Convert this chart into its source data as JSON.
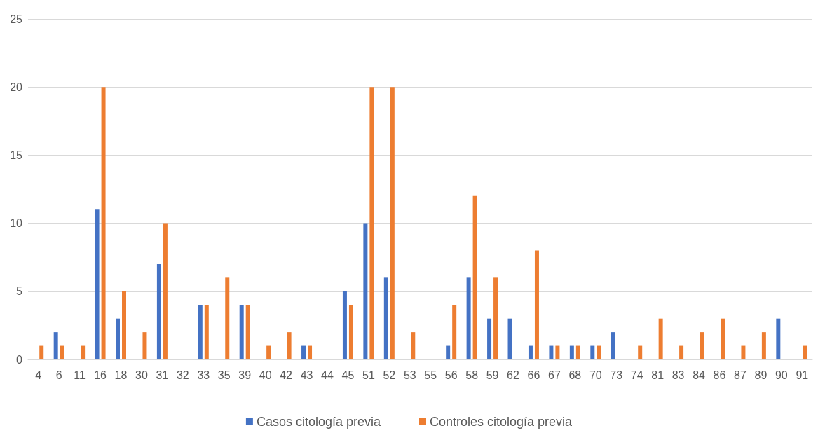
{
  "chart_data": {
    "type": "bar",
    "categories": [
      "4",
      "6",
      "11",
      "16",
      "18",
      "30",
      "31",
      "32",
      "33",
      "35",
      "39",
      "40",
      "42",
      "43",
      "44",
      "45",
      "51",
      "52",
      "53",
      "55",
      "56",
      "58",
      "59",
      "62",
      "66",
      "67",
      "68",
      "70",
      "73",
      "74",
      "81",
      "83",
      "84",
      "86",
      "87",
      "89",
      "90",
      "91"
    ],
    "series": [
      {
        "name": "Casos citología previa",
        "color": "#4472c4",
        "values": [
          0,
          2,
          0,
          11,
          3,
          0,
          7,
          0,
          4,
          0,
          4,
          0,
          0,
          1,
          0,
          5,
          10,
          6,
          0,
          0,
          1,
          6,
          3,
          3,
          1,
          1,
          1,
          1,
          2,
          0,
          0,
          0,
          0,
          0,
          0,
          0,
          3,
          0
        ]
      },
      {
        "name": "Controles citología previa",
        "color": "#ed7d31",
        "values": [
          1,
          1,
          1,
          20,
          5,
          2,
          10,
          0,
          4,
          6,
          4,
          1,
          2,
          1,
          0,
          4,
          20,
          20,
          2,
          0,
          4,
          12,
          6,
          0,
          8,
          1,
          1,
          1,
          0,
          1,
          3,
          1,
          2,
          3,
          1,
          2,
          0,
          1
        ]
      }
    ],
    "ylim": [
      0,
      25
    ],
    "yticks": [
      0,
      5,
      10,
      15,
      20,
      25
    ],
    "grid": "y",
    "legend": "bottom"
  }
}
